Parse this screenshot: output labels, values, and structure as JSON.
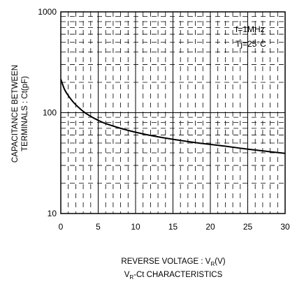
{
  "chart_data": {
    "type": "line",
    "title": "",
    "xlabel": "REVERSE VOLTAGE : V",
    "xlabel_sub": "R",
    "xlabel_tail": "(V)",
    "ylabel_line1": "CAPACITANCE BETWEEN",
    "ylabel_line2": "TERMINALS : Ct(pF)",
    "caption_main": "V",
    "caption_sub": "R",
    "caption_tail": "-Ct CHARACTERISTICS",
    "annotations": [
      "f=1MHz",
      "Tj=25°C"
    ],
    "x_scale": "linear",
    "y_scale": "log",
    "xlim": [
      0,
      30
    ],
    "ylim": [
      10,
      1000
    ],
    "x_ticks": [
      "0",
      "5",
      "10",
      "15",
      "20",
      "25",
      "30"
    ],
    "y_ticks": [
      "10",
      "100",
      "1000"
    ],
    "grid": true,
    "series": [
      {
        "x": [
          0,
          0.5,
          1,
          1.5,
          2,
          3,
          4,
          5,
          6,
          8,
          10,
          12,
          15,
          18,
          20,
          22,
          25,
          28,
          30
        ],
        "y": [
          215,
          170,
          148,
          132,
          120,
          103,
          92,
          84,
          78,
          70,
          64,
          59.5,
          54.5,
          50.5,
          48.5,
          46.5,
          43.5,
          41,
          39.5
        ]
      }
    ],
    "line_color": "#000000"
  }
}
